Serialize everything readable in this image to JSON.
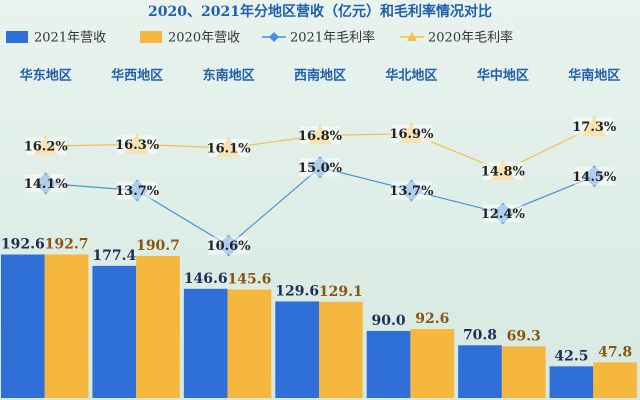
{
  "chart_data": {
    "type": "bar",
    "title": "2020、2021年分地区营收（亿元）和毛利率情况对比",
    "categories": [
      "华东地区",
      "华西地区",
      "东南地区",
      "西南地区",
      "华北地区",
      "华中地区",
      "华南地区"
    ],
    "series": [
      {
        "name": "2021年营收",
        "type": "bar",
        "color": "#2f6fd8",
        "values": [
          192.6,
          177.4,
          146.6,
          129.6,
          90.0,
          70.8,
          42.5
        ],
        "value_labels": [
          "192.6",
          "177.4",
          "146.6",
          "129.6",
          "90.0",
          "70.8",
          "42.5"
        ]
      },
      {
        "name": "2020年营收",
        "type": "bar",
        "color": "#f5b73e",
        "values": [
          192.7,
          190.7,
          145.6,
          129.1,
          92.6,
          69.3,
          47.8
        ],
        "value_labels": [
          "192.7",
          "190.7",
          "145.6",
          "129.1",
          "92.6",
          "69.3",
          "47.8"
        ]
      },
      {
        "name": "2021年毛利率",
        "type": "line",
        "axis": "y2",
        "marker": "diamond",
        "color": "#4a90d9",
        "values": [
          14.1,
          13.7,
          10.6,
          15.0,
          13.7,
          12.4,
          14.5
        ],
        "value_labels": [
          "14.1%",
          "13.7%",
          "10.6%",
          "15.0%",
          "13.7%",
          "12.4%",
          "14.5%"
        ]
      },
      {
        "name": "2020年毛利率",
        "type": "line",
        "axis": "y2",
        "marker": "triangle",
        "color": "#f0c050",
        "values": [
          16.2,
          16.3,
          16.1,
          16.8,
          16.9,
          14.8,
          17.3
        ],
        "value_labels": [
          "16.2%",
          "16.3%",
          "16.1%",
          "16.8%",
          "16.9%",
          "14.8%",
          "17.3%"
        ]
      }
    ],
    "ylim": [
      0,
      400
    ],
    "y2lim": [
      2,
      18.8
    ],
    "legend": "top"
  }
}
